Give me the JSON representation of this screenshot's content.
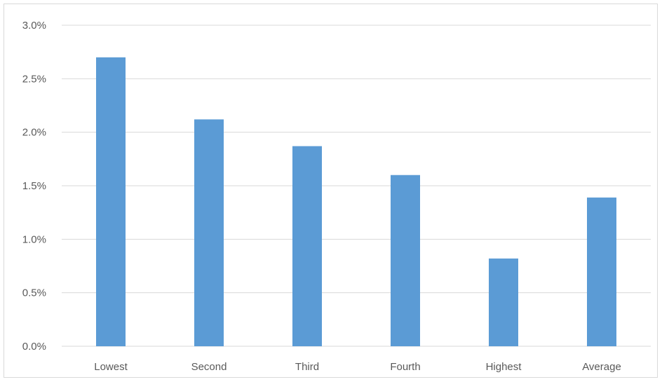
{
  "chart_data": {
    "type": "bar",
    "title": "",
    "xlabel": "",
    "ylabel": "",
    "categories": [
      "Lowest",
      "Second",
      "Third",
      "Fourth",
      "Highest",
      "Average"
    ],
    "values": [
      2.7,
      2.12,
      1.87,
      1.6,
      0.82,
      1.39
    ],
    "ylim": [
      0,
      3.0
    ],
    "yticks": [
      "0.0%",
      "0.5%",
      "1.0%",
      "1.5%",
      "2.0%",
      "2.5%",
      "3.0%"
    ],
    "ytick_values": [
      0,
      0.5,
      1.0,
      1.5,
      2.0,
      2.5,
      3.0
    ],
    "grid": true,
    "legend": "none",
    "bar_color": "#5b9bd5",
    "grid_color": "#d9d9d9"
  }
}
